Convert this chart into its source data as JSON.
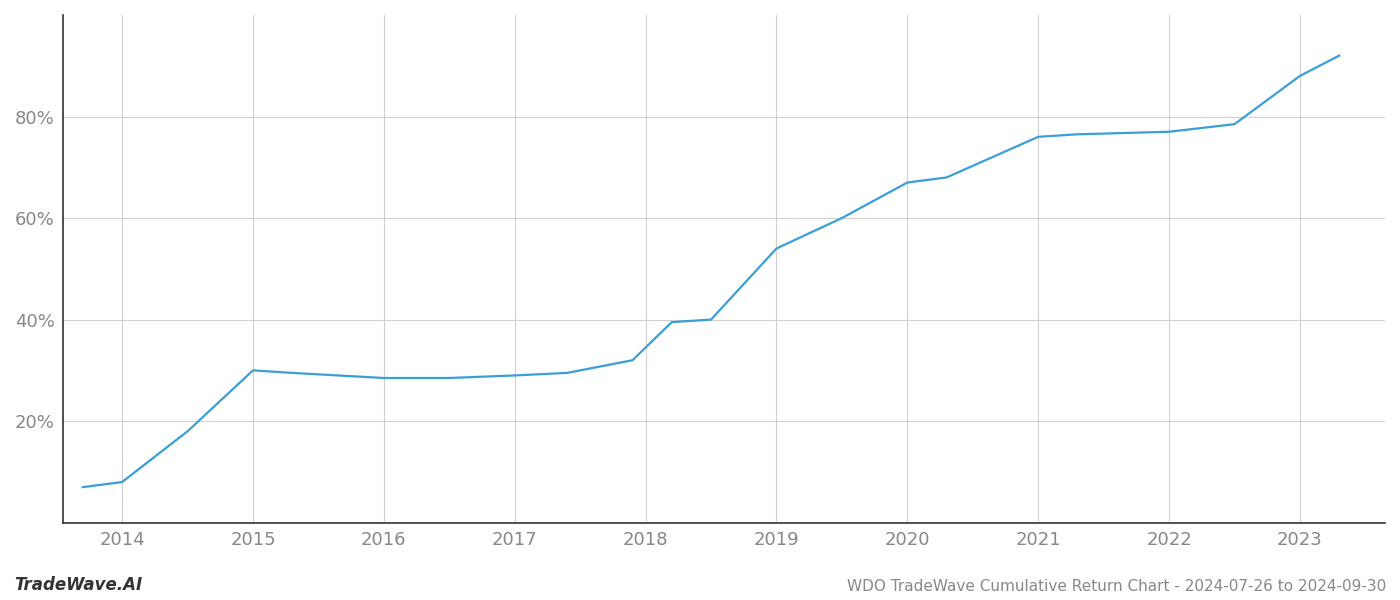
{
  "title": "WDO TradeWave Cumulative Return Chart - 2024-07-26 to 2024-09-30",
  "watermark": "TradeWave.AI",
  "x_values": [
    2013.7,
    2014.0,
    2014.5,
    2015.0,
    2015.3,
    2016.0,
    2016.5,
    2017.0,
    2017.4,
    2017.9,
    2018.2,
    2018.5,
    2019.0,
    2019.5,
    2020.0,
    2020.3,
    2021.0,
    2021.3,
    2022.0,
    2022.5,
    2023.0,
    2023.3
  ],
  "y_values": [
    7,
    8,
    18,
    30,
    29.5,
    28.5,
    28.5,
    29,
    29.5,
    32,
    39.5,
    40,
    54,
    60,
    67,
    68,
    76,
    76.5,
    77,
    78.5,
    88,
    92
  ],
  "line_color": "#3a9fd4",
  "line_width": 1.6,
  "background_color": "#ffffff",
  "grid_color": "#d0d0d0",
  "tick_color": "#888888",
  "left_spine_color": "#333333",
  "bottom_spine_color": "#333333",
  "yticks": [
    20,
    40,
    60,
    80
  ],
  "xticks": [
    2014,
    2015,
    2016,
    2017,
    2018,
    2019,
    2020,
    2021,
    2022,
    2023
  ],
  "xlim": [
    2013.55,
    2023.65
  ],
  "ylim": [
    0,
    100
  ],
  "title_fontsize": 11,
  "tick_fontsize": 13,
  "watermark_fontsize": 12,
  "watermark_fontstyle": "italic",
  "watermark_fontweight": "bold"
}
